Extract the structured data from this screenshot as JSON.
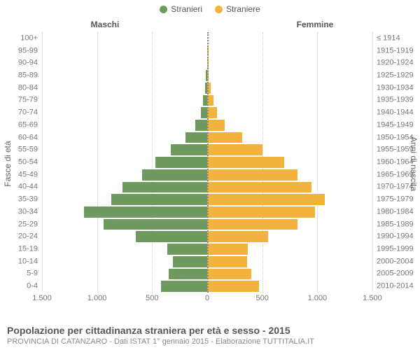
{
  "chart": {
    "type": "population-pyramid",
    "legend": {
      "male": {
        "label": "Stranieri",
        "color": "#6f9a5f"
      },
      "female": {
        "label": "Straniere",
        "color": "#f3b13d"
      }
    },
    "column_headers": {
      "male": "Maschi",
      "female": "Femmine"
    },
    "axis_titles": {
      "left": "Fasce di età",
      "right": "Anni di nascita"
    },
    "xaxis": {
      "lim": [
        -1500,
        1500
      ],
      "ticks": [
        -1500,
        -1000,
        -500,
        0,
        500,
        1000,
        1500
      ],
      "tick_labels": [
        "1.500",
        "1.000",
        "500",
        "0",
        "500",
        "1.000",
        "1.500"
      ]
    },
    "style": {
      "background_color": "#ffffff",
      "grid_color": "#cccccc",
      "centerline_color": "#888888",
      "tick_font_size": 11,
      "label_color": "#777777",
      "row_height_share": 0.045
    },
    "rows": [
      {
        "age": "100+",
        "birth": "≤ 1914",
        "male": 0,
        "female": 0
      },
      {
        "age": "95-99",
        "birth": "1915-1919",
        "male": 0,
        "female": 10
      },
      {
        "age": "90-94",
        "birth": "1920-1924",
        "male": 0,
        "female": 10
      },
      {
        "age": "85-89",
        "birth": "1925-1929",
        "male": 10,
        "female": 15
      },
      {
        "age": "80-84",
        "birth": "1930-1934",
        "male": 20,
        "female": 30
      },
      {
        "age": "75-79",
        "birth": "1935-1939",
        "male": 40,
        "female": 60
      },
      {
        "age": "70-74",
        "birth": "1940-1944",
        "male": 60,
        "female": 90
      },
      {
        "age": "65-69",
        "birth": "1945-1949",
        "male": 110,
        "female": 160
      },
      {
        "age": "60-64",
        "birth": "1950-1954",
        "male": 200,
        "female": 320
      },
      {
        "age": "55-59",
        "birth": "1955-1959",
        "male": 330,
        "female": 500
      },
      {
        "age": "50-54",
        "birth": "1960-1964",
        "male": 470,
        "female": 700
      },
      {
        "age": "45-49",
        "birth": "1965-1969",
        "male": 590,
        "female": 820
      },
      {
        "age": "40-44",
        "birth": "1970-1974",
        "male": 770,
        "female": 950
      },
      {
        "age": "35-39",
        "birth": "1975-1979",
        "male": 870,
        "female": 1070
      },
      {
        "age": "30-34",
        "birth": "1980-1984",
        "male": 1120,
        "female": 980
      },
      {
        "age": "25-29",
        "birth": "1985-1989",
        "male": 940,
        "female": 820
      },
      {
        "age": "20-24",
        "birth": "1990-1994",
        "male": 650,
        "female": 550
      },
      {
        "age": "15-19",
        "birth": "1995-1999",
        "male": 360,
        "female": 370
      },
      {
        "age": "10-14",
        "birth": "2000-2004",
        "male": 310,
        "female": 360
      },
      {
        "age": "5-9",
        "birth": "2005-2009",
        "male": 350,
        "female": 400
      },
      {
        "age": "0-4",
        "birth": "2010-2014",
        "male": 420,
        "female": 470
      }
    ]
  },
  "footer": {
    "title": "Popolazione per cittadinanza straniera per età e sesso - 2015",
    "subtitle": "PROVINCIA DI CATANZARO - Dati ISTAT 1° gennaio 2015 - Elaborazione TUTTITALIA.IT"
  }
}
